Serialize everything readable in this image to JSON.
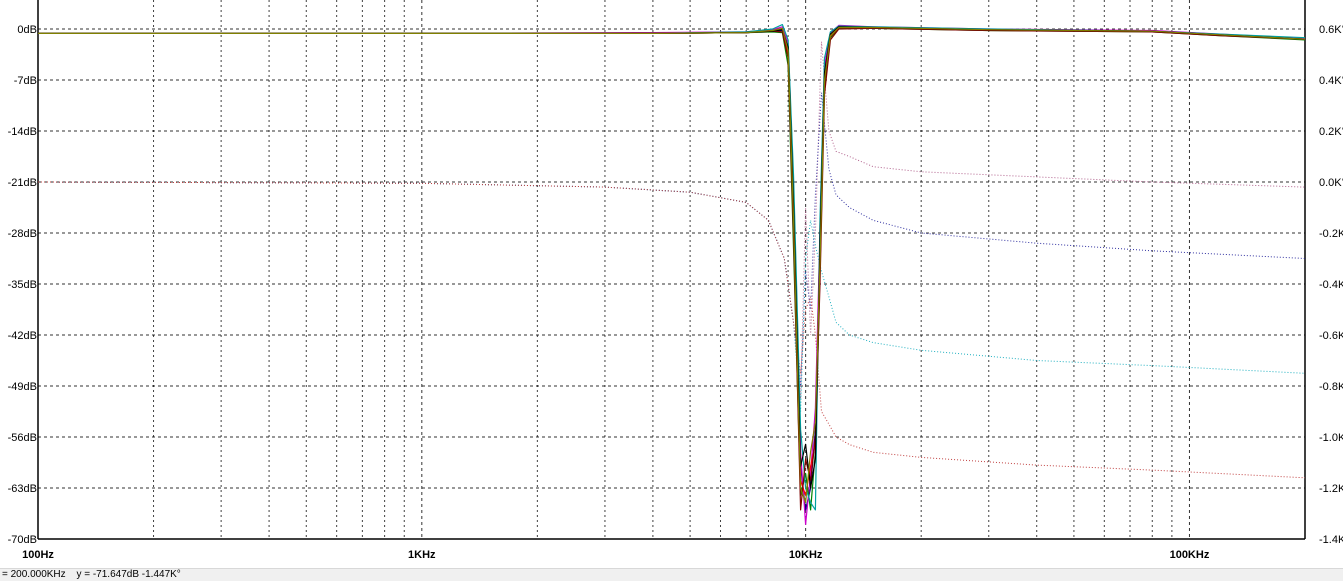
{
  "chart_data": {
    "type": "line",
    "x_scale": "log",
    "xlim": [
      100,
      200000
    ],
    "x_ticks": [
      {
        "value": 100,
        "label": "100Hz"
      },
      {
        "value": 1000,
        "label": "1KHz"
      },
      {
        "value": 10000,
        "label": "10KHz"
      },
      {
        "value": 100000,
        "label": "100KHz"
      }
    ],
    "y_left": {
      "range": [
        -70,
        0
      ],
      "ticks": [
        {
          "value": 0,
          "label": "0dB"
        },
        {
          "value": -7,
          "label": "-7dB"
        },
        {
          "value": -14,
          "label": "-14dB"
        },
        {
          "value": -21,
          "label": "-21dB"
        },
        {
          "value": -28,
          "label": "-28dB"
        },
        {
          "value": -35,
          "label": "-35dB"
        },
        {
          "value": -42,
          "label": "-42dB"
        },
        {
          "value": -49,
          "label": "-49dB"
        },
        {
          "value": -56,
          "label": "-56dB"
        },
        {
          "value": -63,
          "label": "-63dB"
        },
        {
          "value": -70,
          "label": "-70dB"
        }
      ]
    },
    "y_right": {
      "range": [
        -1.4,
        0.6
      ],
      "ticks": [
        {
          "value": 0.6,
          "label": "0.6K°"
        },
        {
          "value": 0.4,
          "label": "0.4K°"
        },
        {
          "value": 0.2,
          "label": "0.2K°"
        },
        {
          "value": 0.0,
          "label": "0.0K°"
        },
        {
          "value": -0.2,
          "label": "-0.2K°"
        },
        {
          "value": -0.4,
          "label": "-0.4K°"
        },
        {
          "value": -0.6,
          "label": "-0.6K°"
        },
        {
          "value": -0.8,
          "label": "-0.8K°"
        },
        {
          "value": -1.0,
          "label": "-1.0K°"
        },
        {
          "value": -1.2,
          "label": "-1.2K°"
        },
        {
          "value": -1.4,
          "label": "-1.4K°"
        }
      ]
    },
    "grid": true,
    "magnitude_series": [
      {
        "color": "#000080",
        "x": [
          100,
          1000,
          4000,
          7000,
          8200,
          8700,
          9000,
          9300,
          9700,
          10000,
          10300,
          10600,
          10900,
          11200,
          11600,
          12200,
          15000,
          30000,
          80000,
          120000,
          200000
        ],
        "y": [
          -0.6,
          -0.6,
          -0.6,
          -0.5,
          -0.3,
          -0.2,
          -3,
          -25,
          -60,
          -66,
          -63,
          -55,
          -30,
          -6,
          -0.8,
          0.3,
          0.2,
          -0.1,
          -0.3,
          -0.8,
          -1.4
        ]
      },
      {
        "color": "#cc00cc",
        "x": [
          100,
          1000,
          4000,
          7000,
          8200,
          8700,
          9000,
          9300,
          9700,
          10000,
          10300,
          10600,
          10900,
          11200,
          11600,
          12200,
          15000,
          30000,
          80000,
          120000,
          200000
        ],
        "y": [
          -0.6,
          -0.6,
          -0.5,
          -0.4,
          -0.1,
          0.3,
          -2,
          -22,
          -58,
          -68,
          -61,
          -52,
          -28,
          -5,
          -0.5,
          0.5,
          0.3,
          0.0,
          -0.2,
          -0.7,
          -1.3
        ]
      },
      {
        "color": "#008000",
        "x": [
          100,
          1000,
          4000,
          7000,
          8200,
          8700,
          9000,
          9300,
          9700,
          10000,
          10300,
          10600,
          10900,
          11200,
          11600,
          12200,
          15000,
          30000,
          80000,
          120000,
          200000
        ],
        "y": [
          -0.6,
          -0.6,
          -0.6,
          -0.5,
          -0.4,
          -0.5,
          -5,
          -30,
          -64,
          -61,
          -66,
          -58,
          -33,
          -8,
          -1.2,
          0.1,
          0.1,
          -0.2,
          -0.4,
          -0.9,
          -1.5
        ]
      },
      {
        "color": "#ff0000",
        "x": [
          100,
          1000,
          4000,
          7000,
          8200,
          8700,
          9000,
          9300,
          9700,
          10000,
          10300,
          10600,
          10900,
          11200,
          11600,
          12200,
          15000,
          30000,
          80000,
          120000,
          200000
        ],
        "y": [
          -0.6,
          -0.6,
          -0.6,
          -0.5,
          -0.2,
          0.0,
          -3.5,
          -27,
          -62,
          -64,
          -60,
          -57,
          -31,
          -7,
          -1.0,
          0.2,
          0.2,
          -0.1,
          -0.3,
          -0.8,
          -1.4
        ]
      },
      {
        "color": "#00a0a0",
        "x": [
          100,
          1000,
          4000,
          7000,
          8200,
          8700,
          9000,
          9300,
          9700,
          10000,
          10300,
          10600,
          10900,
          11200,
          11600,
          12200,
          15000,
          30000,
          80000,
          120000,
          200000
        ],
        "y": [
          -0.6,
          -0.6,
          -0.6,
          -0.4,
          0.0,
          0.6,
          -1.5,
          -20,
          -55,
          -63,
          -65,
          -66,
          -26,
          -4,
          -0.4,
          0.4,
          0.3,
          0.0,
          -0.3,
          -0.7,
          -1.2
        ]
      },
      {
        "color": "#800000",
        "x": [
          100,
          1000,
          4000,
          7000,
          8200,
          8700,
          9000,
          9300,
          9700,
          10000,
          10300,
          10600,
          10900,
          11200,
          11600,
          12200,
          15000,
          30000,
          80000,
          120000,
          200000
        ],
        "y": [
          -0.6,
          -0.6,
          -0.6,
          -0.5,
          -0.3,
          -0.4,
          -4,
          -28,
          -66,
          -59,
          -62,
          -56,
          -35,
          -9,
          -1.5,
          0.0,
          0.1,
          -0.2,
          -0.4,
          -0.9,
          -1.4
        ]
      },
      {
        "color": "#000000",
        "x": [
          100,
          1000,
          4000,
          7000,
          8200,
          8700,
          9000,
          9300,
          9700,
          10000,
          10300,
          10600,
          10900,
          11200,
          11600,
          12200,
          15000,
          30000,
          80000,
          120000,
          200000
        ],
        "y": [
          -0.6,
          -0.6,
          -0.6,
          -0.5,
          -0.3,
          -0.1,
          -2.5,
          -24,
          -60,
          -57,
          -63,
          -59,
          -29,
          -6,
          -0.7,
          0.3,
          0.2,
          -0.1,
          -0.3,
          -0.8,
          -1.4
        ]
      },
      {
        "color": "#808000",
        "x": [
          100,
          1000,
          4000,
          7000,
          8200,
          8700,
          9000,
          9300,
          9700,
          10000,
          10300,
          10600,
          10900,
          11200,
          11600,
          12200,
          15000,
          30000,
          80000,
          120000,
          200000
        ],
        "y": [
          -0.6,
          -0.6,
          -0.6,
          -0.5,
          -0.2,
          0.1,
          -3,
          -26,
          -63,
          -65,
          -58,
          -54,
          -32,
          -7,
          -0.9,
          0.2,
          0.2,
          -0.1,
          -0.3,
          -0.8,
          -1.4
        ]
      }
    ],
    "phase_series": [
      {
        "color": "#b0608c",
        "x": [
          100,
          1000,
          3000,
          5000,
          7000,
          8000,
          8800,
          9300,
          9700,
          10000,
          10300,
          10600,
          11000,
          11500,
          12000,
          13000,
          15000,
          20000,
          40000,
          80000,
          200000
        ],
        "y": [
          0.0,
          -0.005,
          -0.02,
          -0.04,
          -0.08,
          -0.15,
          -0.3,
          -0.55,
          -0.85,
          -0.1,
          -0.6,
          -0.2,
          0.55,
          0.2,
          0.12,
          0.1,
          0.06,
          0.04,
          0.02,
          0.0,
          -0.02
        ]
      },
      {
        "color": "#3030a0",
        "x": [
          100,
          1000,
          3000,
          5000,
          7000,
          8000,
          8800,
          9300,
          9700,
          10000,
          10300,
          10600,
          11000,
          11500,
          12000,
          13000,
          15000,
          20000,
          40000,
          80000,
          200000
        ],
        "y": [
          0.0,
          -0.005,
          -0.02,
          -0.04,
          -0.08,
          -0.15,
          -0.3,
          -0.55,
          -0.8,
          -0.35,
          -0.5,
          -0.05,
          0.35,
          0.05,
          -0.05,
          -0.1,
          -0.15,
          -0.2,
          -0.24,
          -0.27,
          -0.3
        ]
      },
      {
        "color": "#20b0c0",
        "x": [
          100,
          1000,
          3000,
          5000,
          7000,
          8000,
          8800,
          9300,
          9700,
          10000,
          10300,
          10600,
          11000,
          11500,
          12000,
          13000,
          15000,
          20000,
          40000,
          80000,
          200000
        ],
        "y": [
          0.0,
          -0.005,
          -0.02,
          -0.04,
          -0.08,
          -0.15,
          -0.3,
          -0.55,
          -0.9,
          -0.3,
          -0.15,
          -0.25,
          -0.35,
          -0.45,
          -0.55,
          -0.6,
          -0.63,
          -0.66,
          -0.7,
          -0.72,
          -0.75
        ]
      },
      {
        "color": "#c04040",
        "x": [
          100,
          1000,
          3000,
          5000,
          7000,
          8000,
          8800,
          9300,
          9700,
          10000,
          10300,
          10600,
          11000,
          11500,
          12000,
          13000,
          15000,
          20000,
          40000,
          80000,
          200000
        ],
        "y": [
          0.0,
          -0.005,
          -0.02,
          -0.04,
          -0.08,
          -0.15,
          -0.3,
          -0.55,
          -0.75,
          -0.5,
          -0.45,
          -0.6,
          -0.9,
          -0.95,
          -1.0,
          -1.03,
          -1.06,
          -1.08,
          -1.11,
          -1.13,
          -1.16
        ]
      }
    ]
  },
  "statusbar": {
    "cursor_x": "= 200.000KHz",
    "cursor_y": "y = -71.647dB -1.447K°"
  }
}
